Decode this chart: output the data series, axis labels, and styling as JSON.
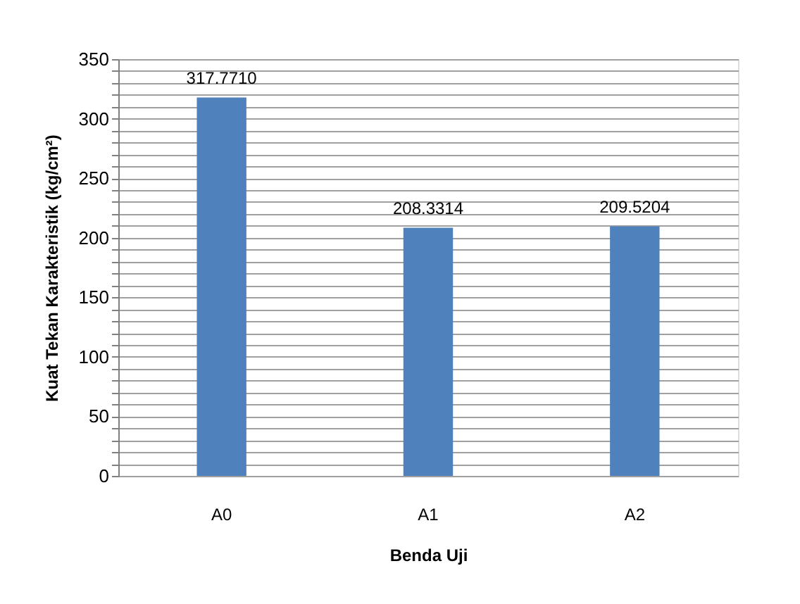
{
  "chart_data": {
    "type": "bar",
    "xlabel": "Benda Uji",
    "ylabel": "Kuat Tekan Karakteristik (kg/cm²)",
    "categories": [
      "A0",
      "A1",
      "A2"
    ],
    "values": [
      317.771,
      208.3314,
      209.5204
    ],
    "value_labels": [
      "317.7710",
      "208.3314",
      "209.5204"
    ],
    "color": "#4f81bd",
    "ylim": [
      0,
      350
    ],
    "yticks": [
      0,
      {
        "value": 10,
        "label": null
      },
      {
        "value": 20,
        "label": null
      },
      {
        "value": 30,
        "label": null
      },
      {
        "value": 40,
        "label": null
      },
      50,
      {
        "value": 60,
        "label": null
      },
      {
        "value": 70,
        "label": null
      },
      {
        "value": 80,
        "label": null
      },
      {
        "value": 90,
        "label": null
      },
      100,
      {
        "value": 110,
        "label": null
      },
      {
        "value": 120,
        "label": null
      },
      {
        "value": 130,
        "label": null
      },
      {
        "value": 140,
        "label": null
      },
      150,
      {
        "value": 160,
        "label": null
      },
      {
        "value": 170,
        "label": null
      },
      {
        "value": 180,
        "label": null
      },
      {
        "value": 190,
        "label": null
      },
      200,
      {
        "value": 210,
        "label": null
      },
      {
        "value": 220,
        "label": null
      },
      {
        "value": 230,
        "label": null
      },
      {
        "value": 240,
        "label": null
      },
      250,
      {
        "value": 260,
        "label": null
      },
      {
        "value": 270,
        "label": null
      },
      {
        "value": 280,
        "label": null
      },
      {
        "value": 290,
        "label": null
      },
      300,
      {
        "value": 310,
        "label": null
      },
      {
        "value": 320,
        "label": null
      },
      {
        "value": 330,
        "label": null
      },
      {
        "value": 340,
        "label": null
      },
      350
    ],
    "grid": "y"
  }
}
